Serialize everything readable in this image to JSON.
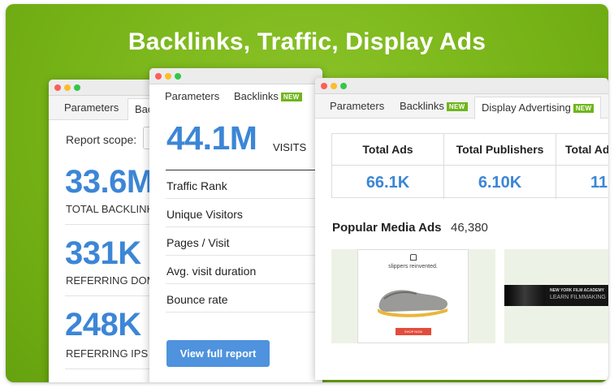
{
  "headline": "Backlinks, Traffic, Display Ads",
  "colors": {
    "brand_green": "#75b216",
    "accent_blue": "#3c86d6",
    "button_blue": "#4f92dd",
    "badge_green": "#6fb51a"
  },
  "window1": {
    "tabs": [
      "Parameters",
      "Bac"
    ],
    "scope_label": "Report scope:",
    "stats": [
      {
        "value": "33.6M",
        "label": "TOTAL BACKLINKS"
      },
      {
        "value": "331K",
        "label": "REFERRING DOMAINS"
      },
      {
        "value": "248K",
        "label": "REFERRING IPS"
      }
    ]
  },
  "window2": {
    "tabs": [
      {
        "label": "Parameters"
      },
      {
        "label": "Backlinks",
        "badge": "NEW"
      }
    ],
    "visits_value": "44.1M",
    "visits_label": "VISITS",
    "metrics": [
      "Traffic Rank",
      "Unique Visitors",
      "Pages / Visit",
      "Avg. visit duration",
      "Bounce rate"
    ],
    "button_label": "View full report"
  },
  "window3": {
    "tabs": [
      {
        "label": "Parameters"
      },
      {
        "label": "Backlinks",
        "badge": "NEW"
      },
      {
        "label": "Display Advertising",
        "badge": "NEW"
      }
    ],
    "columns": [
      {
        "header": "Total Ads",
        "value": "66.1K"
      },
      {
        "header": "Total Publishers",
        "value": "6.10K"
      },
      {
        "header": "Total Ad",
        "value": "11"
      }
    ],
    "popular_title": "Popular Media Ads",
    "popular_count": "46,380",
    "ad1": {
      "tagline": "slippers reinvented.",
      "button": "SHOP NOW"
    },
    "ad2": {
      "line1": "NEW YORK FILM ACADEMY",
      "line2": "LEARN FILMMAKING"
    }
  }
}
